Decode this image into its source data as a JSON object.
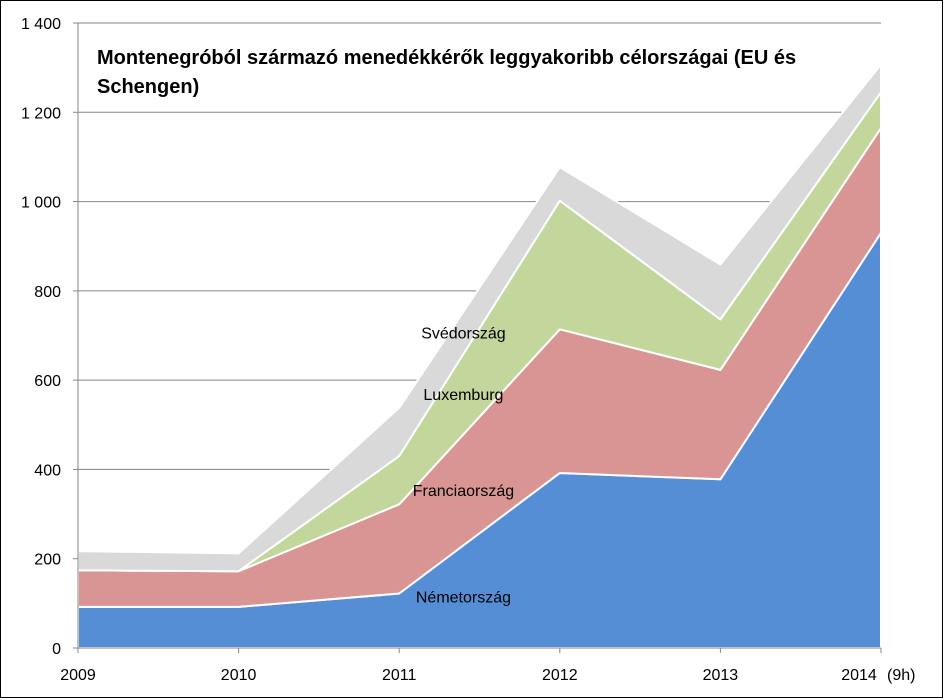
{
  "chart_data": {
    "type": "area",
    "stacked": true,
    "title": "Montenegróból származó menedékkérők leggyakoribb célországai (EU és Schengen)",
    "xlabel": "",
    "ylabel": "",
    "categories": [
      "2009",
      "2010",
      "2011",
      "2012",
      "2013",
      "2014"
    ],
    "x_tick_suffix": "(9h)",
    "y_ticks": [
      "0",
      "200",
      "400",
      "600",
      "800",
      "1 000",
      "1 200",
      "1 400"
    ],
    "y_tick_values": [
      0,
      200,
      400,
      600,
      800,
      1000,
      1200,
      1400
    ],
    "ylim": [
      0,
      1400
    ],
    "grid": true,
    "legend": "none",
    "series": [
      {
        "name": "Németország",
        "values": [
          92,
          92,
          122,
          392,
          378,
          930
        ],
        "color": "#558ed5"
      },
      {
        "name": "Franciaország",
        "values": [
          82,
          80,
          200,
          322,
          245,
          235
        ],
        "color": "#d99594"
      },
      {
        "name": "Luxemburg",
        "values": [
          0,
          0,
          108,
          288,
          113,
          80
        ],
        "color": "#c3d69b"
      },
      {
        "name": "Svédország",
        "values": [
          43,
          40,
          108,
          75,
          123,
          62
        ],
        "color": "#d9d9d9"
      }
    ]
  }
}
